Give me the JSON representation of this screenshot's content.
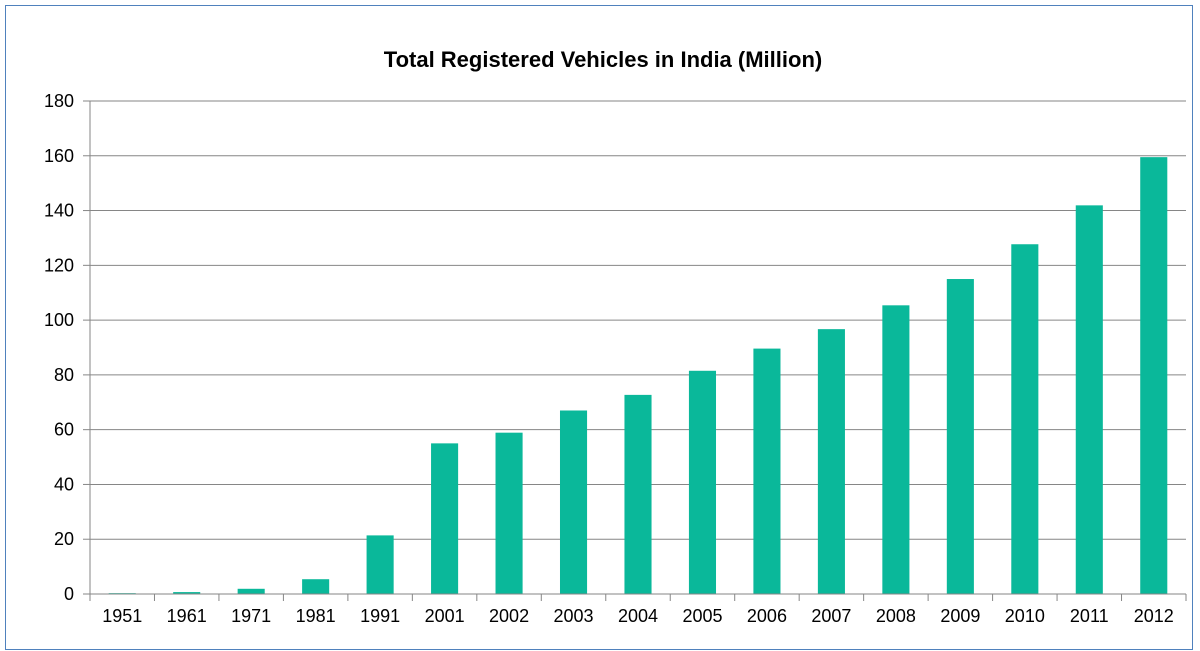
{
  "chart_data": {
    "type": "bar",
    "title": "Total Registered Vehicles in India (Million)",
    "xlabel": "",
    "ylabel": "",
    "categories": [
      "1951",
      "1961",
      "1971",
      "1981",
      "1991",
      "2001",
      "2002",
      "2003",
      "2004",
      "2005",
      "2006",
      "2007",
      "2008",
      "2009",
      "2010",
      "2011",
      "2012"
    ],
    "values": [
      0.3,
      0.7,
      1.9,
      5.4,
      21.4,
      55.0,
      58.9,
      67.0,
      72.7,
      81.5,
      89.6,
      96.7,
      105.4,
      115.0,
      127.7,
      141.9,
      159.5
    ],
    "ylim": [
      0,
      180
    ],
    "yticks": [
      0,
      20,
      40,
      60,
      80,
      100,
      120,
      140,
      160,
      180
    ],
    "grid": true,
    "legend": "none",
    "colors": {
      "bar": "#0ab89a",
      "grid": "#868686",
      "frame": "#4f81bd"
    }
  }
}
